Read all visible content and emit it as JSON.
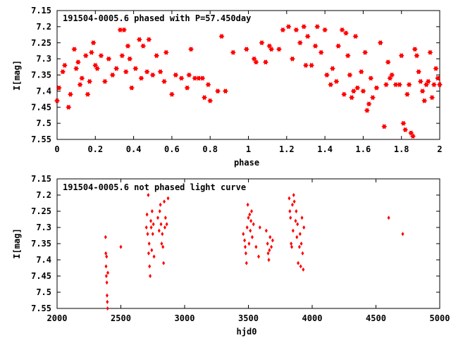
{
  "colors": {
    "points": "#ff0000",
    "axes": "#000000",
    "background": "#ffffff"
  },
  "chart_data": [
    {
      "type": "scatter",
      "title": "191504-0005.6 phased with P=57.450day",
      "xlabel": "phase",
      "ylabel": "I[mag]",
      "xlim": [
        0,
        2
      ],
      "ylim": [
        7.55,
        7.15
      ],
      "y_inverted": true,
      "grid": false,
      "marker": "star",
      "xticks": [
        "0",
        "0.2",
        "0.4",
        "0.6",
        "0.8",
        "1",
        "1.2",
        "1.4",
        "1.6",
        "1.8",
        "2"
      ],
      "xtick_values": [
        0,
        0.2,
        0.4,
        0.6,
        0.8,
        1.0,
        1.2,
        1.4,
        1.6,
        1.8,
        2.0
      ],
      "yticks": [
        "7.15",
        "7.2",
        "7.25",
        "7.3",
        "7.35",
        "7.4",
        "7.45",
        "7.5",
        "7.55"
      ],
      "ytick_values": [
        7.15,
        7.2,
        7.25,
        7.3,
        7.35,
        7.4,
        7.45,
        7.5,
        7.55
      ],
      "x": [
        0.0,
        0.01,
        0.03,
        0.04,
        0.06,
        0.07,
        0.09,
        0.1,
        0.11,
        0.12,
        0.13,
        0.15,
        0.16,
        0.17,
        0.18,
        0.19,
        0.2,
        0.21,
        0.23,
        0.25,
        0.27,
        0.29,
        0.31,
        0.33,
        0.34,
        0.35,
        0.36,
        0.37,
        0.38,
        0.39,
        0.41,
        0.43,
        0.44,
        0.45,
        0.47,
        0.48,
        0.5,
        0.52,
        0.54,
        0.56,
        0.57,
        0.6,
        0.62,
        0.65,
        0.68,
        0.69,
        0.7,
        0.72,
        0.74,
        0.76,
        0.77,
        0.79,
        0.8,
        0.84,
        0.86,
        0.88,
        0.92,
        0.99,
        1.03,
        1.04,
        1.07,
        1.09,
        1.11,
        1.12,
        1.16,
        1.18,
        1.21,
        1.23,
        1.25,
        1.27,
        1.29,
        1.3,
        1.31,
        1.33,
        1.35,
        1.36,
        1.38,
        1.4,
        1.41,
        1.43,
        1.44,
        1.46,
        1.47,
        1.49,
        1.5,
        1.51,
        1.52,
        1.53,
        1.54,
        1.55,
        1.56,
        1.57,
        1.59,
        1.6,
        1.61,
        1.62,
        1.63,
        1.64,
        1.65,
        1.67,
        1.69,
        1.71,
        1.72,
        1.73,
        1.74,
        1.75,
        1.77,
        1.79,
        1.8,
        1.81,
        1.82,
        1.83,
        1.84,
        1.85,
        1.86,
        1.87,
        1.88,
        1.89,
        1.9,
        1.91,
        1.92,
        1.93,
        1.94,
        1.95,
        1.96,
        1.97,
        1.98,
        1.99,
        2.0
      ],
      "y": [
        7.43,
        7.39,
        7.34,
        7.32,
        7.45,
        7.41,
        7.27,
        7.33,
        7.31,
        7.38,
        7.36,
        7.29,
        7.41,
        7.37,
        7.28,
        7.25,
        7.32,
        7.33,
        7.29,
        7.37,
        7.3,
        7.35,
        7.33,
        7.21,
        7.29,
        7.21,
        7.34,
        7.26,
        7.3,
        7.39,
        7.33,
        7.24,
        7.36,
        7.26,
        7.34,
        7.24,
        7.35,
        7.29,
        7.34,
        7.37,
        7.28,
        7.41,
        7.35,
        7.36,
        7.39,
        7.35,
        7.27,
        7.36,
        7.36,
        7.36,
        7.42,
        7.38,
        7.43,
        7.4,
        7.23,
        7.4,
        7.28,
        7.27,
        7.3,
        7.31,
        7.25,
        7.31,
        7.26,
        7.27,
        7.27,
        7.21,
        7.2,
        7.3,
        7.21,
        7.25,
        7.2,
        7.32,
        7.23,
        7.32,
        7.26,
        7.2,
        7.28,
        7.21,
        7.35,
        7.38,
        7.33,
        7.37,
        7.26,
        7.21,
        7.41,
        7.22,
        7.29,
        7.35,
        7.42,
        7.4,
        7.23,
        7.39,
        7.34,
        7.4,
        7.28,
        7.46,
        7.44,
        7.36,
        7.42,
        7.39,
        7.25,
        7.51,
        7.38,
        7.31,
        7.36,
        7.35,
        7.38,
        7.38,
        7.29,
        7.5,
        7.52,
        7.41,
        7.38,
        7.53,
        7.54,
        7.27,
        7.29,
        7.34,
        7.37,
        7.4,
        7.43,
        7.38,
        7.37,
        7.28,
        7.42,
        7.38,
        7.33,
        7.36,
        7.38
      ],
      "panel_index": 0
    },
    {
      "type": "scatter",
      "title": "191504-0005.6 not phased light curve",
      "xlabel": "hjd0",
      "ylabel": "I[mag]",
      "xlim": [
        2000,
        5000
      ],
      "ylim": [
        7.55,
        7.15
      ],
      "y_inverted": true,
      "grid": false,
      "marker": "diamond",
      "xticks": [
        "2000",
        "2500",
        "3000",
        "3500",
        "4000",
        "4500",
        "5000"
      ],
      "xtick_values": [
        2000,
        2500,
        3000,
        3500,
        4000,
        4500,
        5000
      ],
      "yticks": [
        "7.15",
        "7.2",
        "7.25",
        "7.3",
        "7.35",
        "7.4",
        "7.45",
        "7.5",
        "7.55"
      ],
      "ytick_values": [
        7.15,
        7.2,
        7.25,
        7.3,
        7.35,
        7.4,
        7.45,
        7.5,
        7.55
      ],
      "x": [
        2380,
        2382,
        2384,
        2386,
        2388,
        2390,
        2392,
        2394,
        2396,
        2398,
        2500,
        2700,
        2705,
        2710,
        2715,
        2718,
        2722,
        2725,
        2730,
        2735,
        2738,
        2742,
        2745,
        2750,
        2755,
        2760,
        2790,
        2800,
        2805,
        2810,
        2815,
        2820,
        2825,
        2830,
        2835,
        2840,
        2845,
        2850,
        2860,
        2870,
        3460,
        3470,
        3475,
        3480,
        3485,
        3490,
        3495,
        3500,
        3505,
        3510,
        3515,
        3520,
        3525,
        3530,
        3540,
        3560,
        3580,
        3590,
        3640,
        3650,
        3655,
        3660,
        3665,
        3670,
        3680,
        3690,
        3820,
        3825,
        3830,
        3835,
        3840,
        3845,
        3850,
        3855,
        3860,
        3870,
        3875,
        3880,
        3885,
        3890,
        3900,
        3905,
        3910,
        3915,
        3920,
        3925,
        3930,
        3935,
        4600,
        4710
      ],
      "y": [
        7.33,
        7.38,
        7.42,
        7.45,
        7.39,
        7.47,
        7.51,
        7.53,
        7.55,
        7.44,
        7.36,
        7.3,
        7.26,
        7.32,
        7.2,
        7.38,
        7.35,
        7.42,
        7.45,
        7.28,
        7.3,
        7.37,
        7.25,
        7.32,
        7.29,
        7.39,
        7.27,
        7.31,
        7.25,
        7.23,
        7.29,
        7.35,
        7.32,
        7.36,
        7.41,
        7.22,
        7.3,
        7.27,
        7.29,
        7.21,
        7.32,
        7.34,
        7.36,
        7.38,
        7.41,
        7.3,
        7.23,
        7.27,
        7.35,
        7.26,
        7.31,
        7.28,
        7.25,
        7.33,
        7.29,
        7.36,
        7.39,
        7.3,
        7.31,
        7.35,
        7.38,
        7.4,
        7.37,
        7.33,
        7.36,
        7.34,
        7.21,
        7.25,
        7.27,
        7.35,
        7.36,
        7.23,
        7.31,
        7.2,
        7.22,
        7.28,
        7.25,
        7.33,
        7.29,
        7.41,
        7.36,
        7.32,
        7.42,
        7.35,
        7.27,
        7.38,
        7.43,
        7.3,
        7.27,
        7.32
      ],
      "panel_index": 1
    }
  ]
}
